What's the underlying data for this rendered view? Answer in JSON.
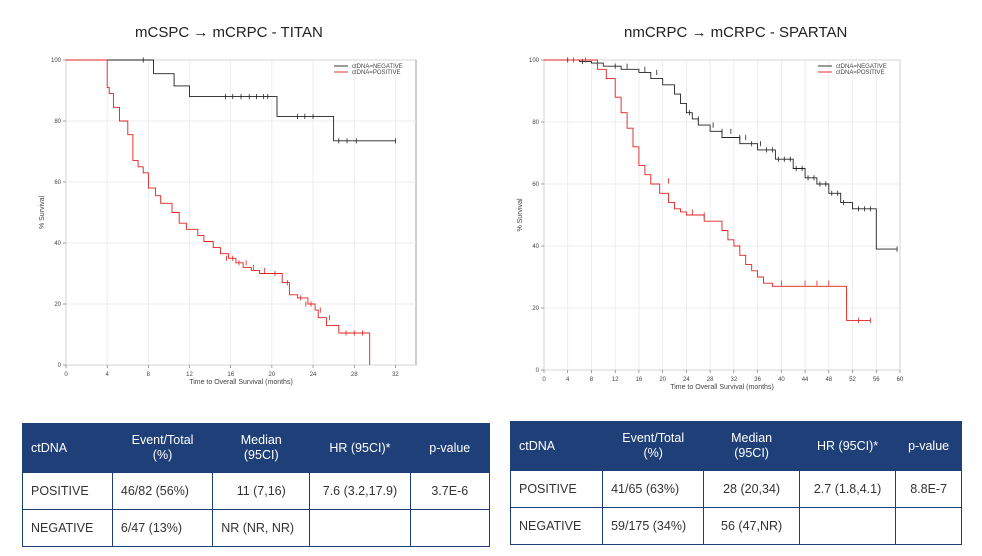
{
  "titles": {
    "left": "mCSPC → mCRPC - TITAN",
    "right": "nmCRPC → mCRPC - SPARTAN"
  },
  "chart_data": [
    {
      "type": "line",
      "title": "mCSPC → mCRPC - TITAN",
      "xlabel": "Time to Overall Survival (months)",
      "ylabel": "% Survival",
      "xlim": [
        0,
        34
      ],
      "ylim": [
        0,
        100
      ],
      "xticks": [
        0,
        4,
        8,
        12,
        16,
        20,
        24,
        28,
        32
      ],
      "yticks": [
        0,
        20,
        40,
        60,
        80,
        100
      ],
      "grid": true,
      "legend": {
        "position": "top-right",
        "entries": [
          "ctDNA=NEGATIVE",
          "ctDNA=POSITIVE"
        ]
      },
      "series": [
        {
          "name": "ctDNA=NEGATIVE",
          "color": "#222222",
          "x": [
            0,
            8.5,
            8.5,
            10.5,
            10.5,
            12,
            12,
            20.5,
            20.5,
            26,
            26,
            32
          ],
          "y": [
            100,
            100,
            95.5,
            95.5,
            91.5,
            91.5,
            88,
            88,
            81.5,
            81.5,
            73.5,
            73.5
          ],
          "censor_x": [
            7.5,
            15.5,
            16.2,
            17,
            17.8,
            18.5,
            19.2,
            19.6,
            22.5,
            23.2,
            24,
            26.5,
            27.3,
            28.2,
            32
          ],
          "censor_y": [
            100,
            88,
            88,
            88,
            88,
            88,
            88,
            88,
            81.5,
            81.5,
            81.5,
            73.5,
            73.5,
            73.5,
            73.5
          ]
        },
        {
          "name": "ctDNA=POSITIVE",
          "color": "#e0201f",
          "x": [
            0,
            4,
            4,
            4.2,
            4.2,
            4.6,
            4.6,
            5.2,
            5.2,
            6,
            6,
            6.5,
            6.5,
            7,
            7,
            7.5,
            7.5,
            8,
            8,
            8.7,
            8.7,
            9.2,
            9.2,
            10.3,
            10.3,
            11,
            11,
            11.7,
            11.7,
            12.8,
            12.8,
            13.4,
            13.4,
            14.3,
            14.3,
            15,
            15,
            15.8,
            15.8,
            16.5,
            16.5,
            17.2,
            17.2,
            18,
            18,
            18.8,
            18.8,
            21,
            21,
            21.7,
            21.7,
            22.5,
            22.5,
            23.5,
            23.5,
            24.2,
            24.2,
            24.5,
            24.5,
            25.3,
            25.3,
            26.5,
            26.5,
            29.5,
            29.5
          ],
          "y": [
            100,
            100,
            91,
            91,
            89,
            89,
            84.5,
            84.5,
            80,
            80,
            75.5,
            75.5,
            67,
            67,
            65,
            65,
            63,
            63,
            58,
            58,
            55.5,
            55.5,
            53,
            53,
            50,
            50,
            46.5,
            46.5,
            44.5,
            44.5,
            42.5,
            42.5,
            40.5,
            40.5,
            38.5,
            38.5,
            36.5,
            36.5,
            35,
            35,
            33.5,
            33.5,
            32,
            32,
            31,
            31,
            30,
            30,
            27,
            27,
            23,
            23,
            22,
            22,
            20,
            20,
            18,
            18,
            15.5,
            15.5,
            13,
            13,
            10.5,
            10.5,
            0
          ],
          "censor_x": [
            15.6,
            16.2,
            16.8,
            17.5,
            18.2,
            19.3,
            20.3,
            21.5,
            22.8,
            23.3,
            23.8,
            24.7,
            25.6,
            27.2,
            28,
            28.8
          ],
          "censor_y": [
            35,
            35,
            33.5,
            33.5,
            32,
            31,
            30,
            27,
            22,
            20,
            20,
            18,
            15.5,
            10.5,
            10.5,
            10.5
          ]
        }
      ]
    },
    {
      "type": "line",
      "title": "nmCRPC → mCRPC - SPARTAN",
      "xlabel": "Time to Overall Survival (months)",
      "ylabel": "% Survival",
      "xlim": [
        0,
        60
      ],
      "ylim": [
        0,
        100
      ],
      "xticks": [
        0,
        4,
        8,
        12,
        16,
        20,
        24,
        28,
        32,
        36,
        40,
        44,
        48,
        52,
        56,
        60
      ],
      "yticks": [
        0,
        20,
        40,
        60,
        80,
        100
      ],
      "grid": true,
      "legend": {
        "position": "top-right",
        "entries": [
          "ctDNA=NEGATIVE",
          "ctDNA=POSITIVE"
        ]
      },
      "series": [
        {
          "name": "ctDNA=NEGATIVE",
          "color": "#222222",
          "x": [
            0,
            6,
            6,
            8,
            8,
            10,
            10,
            13,
            13,
            16,
            16,
            18,
            18,
            20,
            20,
            22,
            22,
            23,
            23,
            24,
            24,
            25,
            25,
            26,
            26,
            28,
            28,
            30,
            30,
            33,
            33,
            36,
            36,
            39,
            39,
            42,
            42,
            44,
            44,
            46,
            46,
            48,
            48,
            50,
            50,
            52,
            52,
            56,
            56,
            59.5
          ],
          "y": [
            100,
            100,
            99.5,
            99.5,
            99,
            99,
            98,
            98,
            97,
            97,
            96,
            96,
            94,
            94,
            92,
            92,
            89,
            89,
            86,
            86,
            83,
            83,
            81,
            81,
            79,
            79,
            77,
            77,
            75,
            75,
            73,
            73,
            71,
            71,
            68,
            68,
            65,
            65,
            62,
            62,
            60,
            60,
            57,
            57,
            54,
            54,
            52,
            52,
            39,
            39
          ],
          "censor_x": [
            4,
            6.5,
            9,
            12,
            14,
            17,
            19,
            24.5,
            26,
            28.5,
            30,
            31.5,
            33,
            34,
            35,
            36.5,
            37.5,
            38.5,
            39.5,
            40.5,
            41.5,
            42.5,
            43.5,
            44.5,
            45.5,
            46.5,
            47.5,
            48.5,
            49.5,
            50.5,
            53,
            54,
            55,
            59.5
          ],
          "censor_y": [
            100,
            99.5,
            99,
            98,
            98,
            97,
            96,
            83,
            81,
            79,
            77,
            77,
            75,
            75,
            73,
            73,
            71,
            71,
            68,
            68,
            68,
            65,
            65,
            62,
            62,
            60,
            60,
            57,
            57,
            54,
            52,
            52,
            52,
            39
          ]
        },
        {
          "name": "ctDNA=POSITIVE",
          "color": "#e0201f",
          "x": [
            0,
            9,
            9,
            10.5,
            10.5,
            12,
            12,
            13,
            13,
            14,
            14,
            15,
            15,
            16,
            16,
            17,
            17,
            18,
            18,
            19.5,
            19.5,
            21,
            21,
            22,
            22,
            23,
            23,
            24,
            24,
            27,
            27,
            30,
            30,
            31,
            31,
            32,
            32,
            33,
            33,
            34,
            34,
            35,
            35,
            36,
            36,
            37,
            37,
            38.5,
            38.5,
            51,
            51,
            55
          ],
          "y": [
            100,
            100,
            97,
            97,
            94,
            94,
            88,
            88,
            83,
            83,
            78,
            78,
            72,
            72,
            66,
            66,
            63,
            63,
            60,
            60,
            57,
            57,
            54,
            54,
            52,
            52,
            51,
            51,
            50,
            50,
            48,
            48,
            45,
            45,
            42,
            42,
            40,
            40,
            37,
            37,
            34,
            34,
            32,
            32,
            30,
            30,
            28,
            28,
            27,
            27,
            16,
            16
          ],
          "censor_x": [
            5,
            7,
            21,
            25,
            27,
            40,
            44,
            46,
            48,
            51,
            53,
            55
          ],
          "censor_y": [
            100,
            100,
            61,
            51,
            50,
            28,
            28,
            28,
            28,
            24,
            16,
            16
          ]
        }
      ]
    }
  ],
  "tables": {
    "left": {
      "headers": [
        "ctDNA",
        "Event/Total\n(%)",
        "Median\n(95CI)",
        "HR (95CI)*",
        "p-value"
      ],
      "rows": [
        [
          "POSITIVE",
          "46/82 (56%)",
          "11 (7,16)",
          "7.6 (3.2,17.9)",
          "3.7E-6"
        ],
        [
          "NEGATIVE",
          "6/47 (13%)",
          "NR (NR, NR)",
          "",
          ""
        ]
      ]
    },
    "right": {
      "headers": [
        "ctDNA",
        "Event/Total\n(%)",
        "Median\n(95CI)",
        "HR (95CI)*",
        "p-value"
      ],
      "rows": [
        [
          "POSITIVE",
          "41/65 (63%)",
          "28 (20,34)",
          "2.7 (1.8,4.1)",
          "8.8E-7"
        ],
        [
          "NEGATIVE",
          "59/175 (34%)",
          "56 (47,NR)",
          "",
          ""
        ]
      ]
    }
  }
}
